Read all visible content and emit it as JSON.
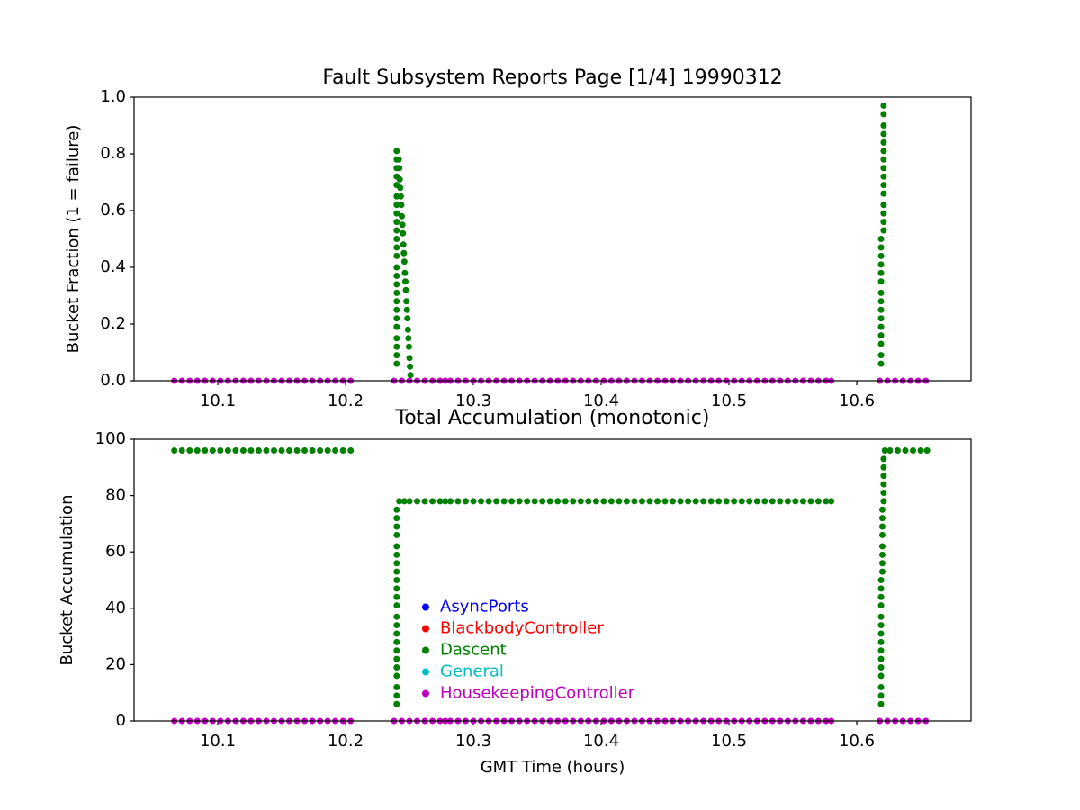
{
  "chart_data": [
    {
      "type": "scatter",
      "title": "Fault Subsystem Reports Page [1/4] 19990312",
      "ylabel": "Bucket Fraction (1 = failure)",
      "xlim": [
        10.0345,
        10.6894
      ],
      "ylim": [
        0,
        1
      ],
      "xticks": [
        10.1,
        10.2,
        10.3,
        10.4,
        10.5,
        10.6
      ],
      "yticks": [
        {
          "value": 0,
          "label": "0.0"
        },
        0.2,
        0.4,
        0.6,
        0.8,
        {
          "value": 1,
          "label": "1.0"
        }
      ],
      "series": [
        {
          "name": "AsyncPorts",
          "color": "#0000ff",
          "x": [],
          "values": []
        },
        {
          "name": "BlackbodyController",
          "color": "#ff0000",
          "x": [],
          "values": []
        },
        {
          "name": "Dascent",
          "color": "#008000",
          "x": [
            10.24,
            10.24,
            10.24,
            10.24,
            10.24,
            10.24,
            10.24,
            10.24,
            10.24,
            10.24,
            10.24,
            10.24,
            10.24,
            10.24,
            10.24,
            10.24,
            10.24,
            10.24,
            10.24,
            10.24,
            10.24,
            10.24,
            10.24,
            10.24,
            10.24,
            10.2416,
            10.242,
            10.2424,
            10.2428,
            10.2432,
            10.2436,
            10.244,
            10.2444,
            10.2448,
            10.2452,
            10.2456,
            10.246,
            10.2464,
            10.2468,
            10.2472,
            10.2476,
            10.248,
            10.2484,
            10.2488,
            10.2492,
            10.2496,
            10.25,
            10.2504,
            10.2508,
            10.619,
            10.619,
            10.619,
            10.619,
            10.619,
            10.619,
            10.619,
            10.619,
            10.619,
            10.619,
            10.619,
            10.619,
            10.619,
            10.619,
            10.619,
            10.621,
            10.621,
            10.621,
            10.621,
            10.621,
            10.621,
            10.621,
            10.621,
            10.621,
            10.621,
            10.621,
            10.621,
            10.621,
            10.621,
            10.621
          ],
          "values": [
            0.06,
            0.09,
            0.12,
            0.15,
            0.19,
            0.22,
            0.25,
            0.28,
            0.31,
            0.34,
            0.37,
            0.4,
            0.44,
            0.47,
            0.5,
            0.53,
            0.56,
            0.59,
            0.62,
            0.65,
            0.69,
            0.72,
            0.75,
            0.78,
            0.81,
            0.78,
            0.75,
            0.71,
            0.68,
            0.65,
            0.62,
            0.58,
            0.55,
            0.52,
            0.48,
            0.45,
            0.42,
            0.38,
            0.35,
            0.32,
            0.28,
            0.25,
            0.22,
            0.18,
            0.15,
            0.12,
            0.08,
            0.05,
            0.02,
            0.06,
            0.09,
            0.13,
            0.16,
            0.19,
            0.22,
            0.25,
            0.28,
            0.31,
            0.35,
            0.38,
            0.41,
            0.44,
            0.47,
            0.5,
            0.53,
            0.56,
            0.59,
            0.62,
            0.66,
            0.69,
            0.72,
            0.75,
            0.78,
            0.81,
            0.84,
            0.87,
            0.9,
            0.94,
            0.97
          ]
        },
        {
          "name": "General",
          "color": "#00bfbf",
          "x": [],
          "values": []
        },
        {
          "name": "HousekeepingController",
          "color": "#bf00bf",
          "x": [
            10.066,
            10.072,
            10.078,
            10.084,
            10.09,
            10.096,
            10.102,
            10.108,
            10.114,
            10.12,
            10.126,
            10.132,
            10.138,
            10.144,
            10.15,
            10.156,
            10.162,
            10.168,
            10.174,
            10.18,
            10.186,
            10.192,
            10.198,
            10.204,
            10.238,
            10.244,
            10.25,
            10.256,
            10.262,
            10.268,
            10.274,
            10.278,
            10.282,
            10.288,
            10.294,
            10.3,
            10.306,
            10.312,
            10.318,
            10.324,
            10.33,
            10.336,
            10.342,
            10.348,
            10.354,
            10.36,
            10.366,
            10.372,
            10.378,
            10.384,
            10.39,
            10.396,
            10.402,
            10.408,
            10.414,
            10.42,
            10.426,
            10.432,
            10.438,
            10.444,
            10.45,
            10.456,
            10.462,
            10.468,
            10.474,
            10.48,
            10.486,
            10.492,
            10.498,
            10.504,
            10.51,
            10.516,
            10.522,
            10.528,
            10.534,
            10.54,
            10.546,
            10.552,
            10.558,
            10.564,
            10.57,
            10.576,
            10.58,
            10.618,
            10.624,
            10.63,
            10.636,
            10.642,
            10.648,
            10.654
          ],
          "values": [
            0,
            0,
            0,
            0,
            0,
            0,
            0,
            0,
            0,
            0,
            0,
            0,
            0,
            0,
            0,
            0,
            0,
            0,
            0,
            0,
            0,
            0,
            0,
            0,
            0,
            0,
            0,
            0,
            0,
            0,
            0,
            0,
            0,
            0,
            0,
            0,
            0,
            0,
            0,
            0,
            0,
            0,
            0,
            0,
            0,
            0,
            0,
            0,
            0,
            0,
            0,
            0,
            0,
            0,
            0,
            0,
            0,
            0,
            0,
            0,
            0,
            0,
            0,
            0,
            0,
            0,
            0,
            0,
            0,
            0,
            0,
            0,
            0,
            0,
            0,
            0,
            0,
            0,
            0,
            0,
            0,
            0,
            0,
            0,
            0,
            0,
            0,
            0,
            0,
            0
          ]
        }
      ]
    },
    {
      "type": "scatter",
      "title": "Total Accumulation (monotonic)",
      "ylabel": "Bucket Accumulation",
      "xlabel": "GMT Time (hours)",
      "xlim": [
        10.0345,
        10.6894
      ],
      "ylim": [
        0,
        100
      ],
      "xticks": [
        10.1,
        10.2,
        10.3,
        10.4,
        10.5,
        10.6
      ],
      "yticks": [
        0,
        20,
        40,
        60,
        80,
        100
      ],
      "legend": "center",
      "series": [
        {
          "name": "AsyncPorts",
          "color": "#0000ff",
          "x": [],
          "values": []
        },
        {
          "name": "BlackbodyController",
          "color": "#ff0000",
          "x": [],
          "values": []
        },
        {
          "name": "Dascent",
          "color": "#008000",
          "x": [
            10.066,
            10.072,
            10.078,
            10.084,
            10.09,
            10.096,
            10.102,
            10.108,
            10.114,
            10.12,
            10.126,
            10.132,
            10.138,
            10.144,
            10.15,
            10.156,
            10.162,
            10.168,
            10.174,
            10.18,
            10.186,
            10.192,
            10.198,
            10.204,
            10.24,
            10.24,
            10.24,
            10.24,
            10.24,
            10.24,
            10.24,
            10.24,
            10.24,
            10.24,
            10.24,
            10.24,
            10.24,
            10.24,
            10.24,
            10.24,
            10.24,
            10.24,
            10.24,
            10.24,
            10.24,
            10.24,
            10.24,
            10.242,
            10.246,
            10.25,
            10.256,
            10.262,
            10.268,
            10.274,
            10.278,
            10.282,
            10.288,
            10.294,
            10.3,
            10.306,
            10.312,
            10.318,
            10.324,
            10.33,
            10.336,
            10.342,
            10.348,
            10.354,
            10.36,
            10.366,
            10.372,
            10.378,
            10.384,
            10.39,
            10.396,
            10.402,
            10.408,
            10.414,
            10.42,
            10.426,
            10.432,
            10.438,
            10.444,
            10.45,
            10.456,
            10.462,
            10.468,
            10.474,
            10.48,
            10.486,
            10.492,
            10.498,
            10.504,
            10.51,
            10.516,
            10.522,
            10.528,
            10.534,
            10.54,
            10.546,
            10.552,
            10.558,
            10.564,
            10.57,
            10.576,
            10.58,
            10.619,
            10.619,
            10.619,
            10.619,
            10.619,
            10.619,
            10.619,
            10.619,
            10.619,
            10.619,
            10.619,
            10.619,
            10.619,
            10.619,
            10.619,
            10.62,
            10.62,
            10.62,
            10.62,
            10.62,
            10.62,
            10.62,
            10.62,
            10.621,
            10.621,
            10.621,
            10.621,
            10.621,
            10.621,
            10.622,
            10.626,
            10.632,
            10.638,
            10.644,
            10.65,
            10.655
          ],
          "values": [
            96,
            96,
            96,
            96,
            96,
            96,
            96,
            96,
            96,
            96,
            96,
            96,
            96,
            96,
            96,
            96,
            96,
            96,
            96,
            96,
            96,
            96,
            96,
            96,
            6,
            9,
            12,
            16,
            19,
            22,
            25,
            28,
            31,
            34,
            37,
            41,
            44,
            47,
            50,
            53,
            56,
            59,
            62,
            66,
            69,
            72,
            75,
            78,
            78,
            78,
            78,
            78,
            78,
            78,
            78,
            78,
            78,
            78,
            78,
            78,
            78,
            78,
            78,
            78,
            78,
            78,
            78,
            78,
            78,
            78,
            78,
            78,
            78,
            78,
            78,
            78,
            78,
            78,
            78,
            78,
            78,
            78,
            78,
            78,
            78,
            78,
            78,
            78,
            78,
            78,
            78,
            78,
            78,
            78,
            78,
            78,
            78,
            78,
            78,
            78,
            78,
            78,
            78,
            78,
            78,
            78,
            6,
            9,
            12,
            16,
            19,
            22,
            25,
            28,
            31,
            34,
            37,
            41,
            44,
            47,
            50,
            53,
            56,
            59,
            62,
            66,
            69,
            72,
            75,
            78,
            81,
            84,
            87,
            90,
            93,
            96,
            96,
            96,
            96,
            96,
            96,
            96
          ]
        },
        {
          "name": "General",
          "color": "#00bfbf",
          "x": [],
          "values": []
        },
        {
          "name": "HousekeepingController",
          "color": "#bf00bf",
          "x": [
            10.066,
            10.072,
            10.078,
            10.084,
            10.09,
            10.096,
            10.102,
            10.108,
            10.114,
            10.12,
            10.126,
            10.132,
            10.138,
            10.144,
            10.15,
            10.156,
            10.162,
            10.168,
            10.174,
            10.18,
            10.186,
            10.192,
            10.198,
            10.204,
            10.238,
            10.244,
            10.25,
            10.256,
            10.262,
            10.268,
            10.274,
            10.278,
            10.282,
            10.288,
            10.294,
            10.3,
            10.306,
            10.312,
            10.318,
            10.324,
            10.33,
            10.336,
            10.342,
            10.348,
            10.354,
            10.36,
            10.366,
            10.372,
            10.378,
            10.384,
            10.39,
            10.396,
            10.402,
            10.408,
            10.414,
            10.42,
            10.426,
            10.432,
            10.438,
            10.444,
            10.45,
            10.456,
            10.462,
            10.468,
            10.474,
            10.48,
            10.486,
            10.492,
            10.498,
            10.504,
            10.51,
            10.516,
            10.522,
            10.528,
            10.534,
            10.54,
            10.546,
            10.552,
            10.558,
            10.564,
            10.57,
            10.576,
            10.58,
            10.618,
            10.624,
            10.63,
            10.636,
            10.642,
            10.648,
            10.654
          ],
          "values": [
            0,
            0,
            0,
            0,
            0,
            0,
            0,
            0,
            0,
            0,
            0,
            0,
            0,
            0,
            0,
            0,
            0,
            0,
            0,
            0,
            0,
            0,
            0,
            0,
            0,
            0,
            0,
            0,
            0,
            0,
            0,
            0,
            0,
            0,
            0,
            0,
            0,
            0,
            0,
            0,
            0,
            0,
            0,
            0,
            0,
            0,
            0,
            0,
            0,
            0,
            0,
            0,
            0,
            0,
            0,
            0,
            0,
            0,
            0,
            0,
            0,
            0,
            0,
            0,
            0,
            0,
            0,
            0,
            0,
            0,
            0,
            0,
            0,
            0,
            0,
            0,
            0,
            0,
            0,
            0,
            0,
            0,
            0,
            0,
            0,
            0,
            0,
            0,
            0,
            0
          ]
        }
      ]
    }
  ]
}
